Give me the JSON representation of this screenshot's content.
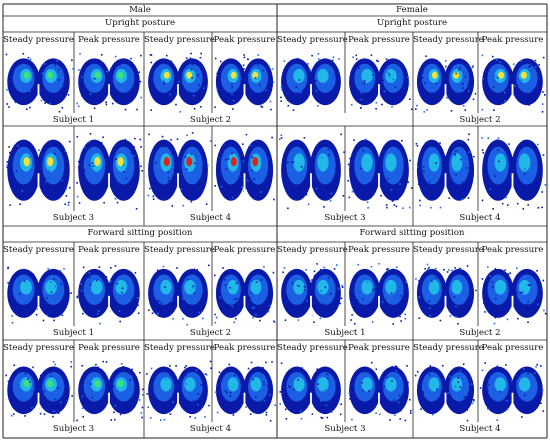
{
  "figure": {
    "groups": [
      {
        "label": "Male",
        "sections": [
          {
            "title": "Upright posture",
            "rows": [
              {
                "panels": [
                  {
                    "labels": [
                      "Steady pressure",
                      "Peak pressure"
                    ],
                    "subject": "Subject 1",
                    "hotspot": "green"
                  },
                  {
                    "labels": [
                      "Steady pressure",
                      "Peak pressure"
                    ],
                    "subject": "Subject 2",
                    "hotspot": "yellow"
                  }
                ]
              },
              {
                "panels": [
                  {
                    "labels": [],
                    "subject": "Subject 3",
                    "hotspot": "yellow"
                  },
                  {
                    "labels": [],
                    "subject": "Subject 4",
                    "hotspot": "red"
                  }
                ]
              }
            ]
          },
          {
            "title": "Forward sitting position",
            "rows": [
              {
                "panels": [
                  {
                    "labels": [
                      "Steady pressure",
                      "Peak pressure"
                    ],
                    "subject": "Subject 1",
                    "hotspot": "cyan"
                  },
                  {
                    "labels": [
                      "Steady pressure",
                      "Peak pressure"
                    ],
                    "subject": "Subject 2",
                    "hotspot": "cyan"
                  }
                ]
              },
              {
                "panels": [
                  {
                    "labels": [
                      "Steady pressure",
                      "Peak pressure"
                    ],
                    "subject": "Subject 3",
                    "hotspot": "green"
                  },
                  {
                    "labels": [
                      "Steady pressure",
                      "Peak pressure"
                    ],
                    "subject": "Subject 4",
                    "hotspot": "cyan"
                  }
                ]
              }
            ]
          }
        ]
      },
      {
        "label": "Female",
        "sections": [
          {
            "title": "Upright posture",
            "rows": [
              {
                "panels": [
                  {
                    "labels": [
                      "Steady pressure",
                      "Peak pressure"
                    ],
                    "subject": "",
                    "hotspot": "cyan"
                  },
                  {
                    "labels": [
                      "Steady pressure",
                      "Peak pressure"
                    ],
                    "subject": "Subject 2",
                    "hotspot": "yellow"
                  }
                ]
              },
              {
                "panels": [
                  {
                    "labels": [],
                    "subject": "Subject 3",
                    "hotspot": "cyan"
                  },
                  {
                    "labels": [],
                    "subject": "Subject 4",
                    "hotspot": "cyan"
                  }
                ]
              }
            ]
          },
          {
            "title": "Forward sitting position",
            "rows": [
              {
                "panels": [
                  {
                    "labels": [
                      "Steady pressure",
                      "Peak pressure"
                    ],
                    "subject": "Subject 1",
                    "hotspot": "cyan"
                  },
                  {
                    "labels": [
                      "Steady pressure",
                      "Peak pressure"
                    ],
                    "subject": "Subject 2",
                    "hotspot": "cyan"
                  }
                ]
              },
              {
                "panels": [
                  {
                    "labels": [
                      "Steady pressure",
                      "Peak pressure"
                    ],
                    "subject": "Subject 3",
                    "hotspot": "cyan"
                  },
                  {
                    "labels": [
                      "Steady pressure",
                      "Peak pressure"
                    ],
                    "subject": "Subject 4",
                    "hotspot": "cyan"
                  }
                ]
              }
            ]
          }
        ]
      }
    ],
    "colors": {
      "low": "#0a1aa8",
      "mid": "#1e6cf0",
      "cyan": "#22c7e6",
      "green": "#3ee07a",
      "yellow": "#f2e23a",
      "red": "#e0221a",
      "grid": "#222222"
    }
  }
}
